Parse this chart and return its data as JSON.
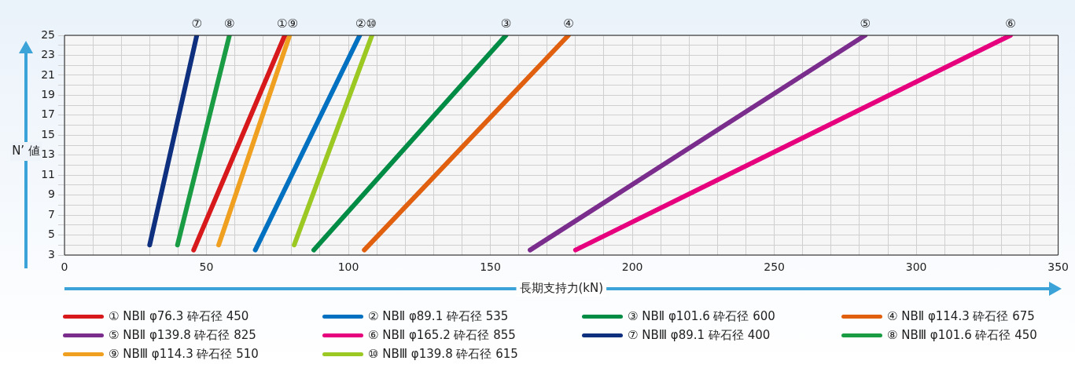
{
  "chart_data": {
    "type": "line",
    "xlabel": "長期支持力(kN)",
    "ylabel": "N’ 値",
    "xlim": [
      0,
      350
    ],
    "xticks": [
      0,
      {
        "value": 10,
        "label": null
      },
      {
        "value": 20,
        "label": null
      },
      {
        "value": 30,
        "label": null
      },
      {
        "value": 40,
        "label": null
      },
      50,
      {
        "value": 60,
        "label": null
      },
      {
        "value": 70,
        "label": null
      },
      {
        "value": 80,
        "label": null
      },
      {
        "value": 90,
        "label": null
      },
      100,
      {
        "value": 110,
        "label": null
      },
      {
        "value": 120,
        "label": null
      },
      {
        "value": 130,
        "label": null
      },
      {
        "value": 140,
        "label": null
      },
      150,
      {
        "value": 160,
        "label": null
      },
      {
        "value": 170,
        "label": null
      },
      {
        "value": 180,
        "label": null
      },
      {
        "value": 190,
        "label": null
      },
      200,
      {
        "value": 210,
        "label": null
      },
      {
        "value": 220,
        "label": null
      },
      {
        "value": 230,
        "label": null
      },
      {
        "value": 240,
        "label": null
      },
      250,
      {
        "value": 260,
        "label": null
      },
      {
        "value": 270,
        "label": null
      },
      {
        "value": 280,
        "label": null
      },
      {
        "value": 290,
        "label": null
      },
      300,
      {
        "value": 310,
        "label": null
      },
      {
        "value": 320,
        "label": null
      },
      {
        "value": 330,
        "label": null
      },
      {
        "value": 340,
        "label": null
      },
      350
    ],
    "ylim": [
      3,
      25
    ],
    "yticks": [
      3,
      {
        "value": 4,
        "label": null
      },
      5,
      {
        "value": 6,
        "label": null
      },
      7,
      {
        "value": 8,
        "label": null
      },
      9,
      {
        "value": 10,
        "label": null
      },
      11,
      {
        "value": 12,
        "label": null
      },
      13,
      {
        "value": 14,
        "label": null
      },
      15,
      {
        "value": 16,
        "label": null
      },
      17,
      {
        "value": 18,
        "label": null
      },
      19,
      {
        "value": 20,
        "label": null
      },
      21,
      {
        "value": 22,
        "label": null
      },
      23,
      {
        "value": 24,
        "label": null
      },
      25
    ],
    "grid": true,
    "legend": "bottom",
    "series": [
      {
        "name": "① NBⅡ φ76.3 砕石径 450",
        "color": "#d7191c",
        "x": [
          45.5,
          77.6
        ],
        "values": [
          3.5,
          25
        ]
      },
      {
        "name": "② NBⅡ φ89.1 砕石径 535",
        "color": "#0070c0",
        "x": [
          67.2,
          104
        ],
        "values": [
          3.5,
          25
        ]
      },
      {
        "name": "③ NBⅡ φ101.6 砕石径 600",
        "color": "#008c45",
        "x": [
          87.8,
          155.5
        ],
        "values": [
          3.5,
          25
        ]
      },
      {
        "name": "④ NBⅡ φ114.3 砕石径 675",
        "color": "#e06010",
        "x": [
          105.6,
          177.5
        ],
        "values": [
          3.5,
          25
        ]
      },
      {
        "name": "⑤ NBⅡ φ139.8 砕石径 825",
        "color": "#7a2d8c",
        "x": [
          164,
          282
        ],
        "values": [
          3.5,
          25
        ]
      },
      {
        "name": "⑥ NBⅡ φ165.2 砕石径 855",
        "color": "#e6007e",
        "x": [
          180,
          333.2
        ],
        "values": [
          3.5,
          25
        ]
      },
      {
        "name": "⑦ NBⅢ φ89.1 砕石径 400",
        "color": "#0f2f7f",
        "x": [
          30,
          46.6
        ],
        "values": [
          4,
          25
        ]
      },
      {
        "name": "⑧ NBⅢ φ101.6 砕石径 450",
        "color": "#1a9c45",
        "x": [
          39.8,
          58.1
        ],
        "values": [
          4,
          25
        ]
      },
      {
        "name": "⑨ NBⅢ φ114.3 砕石径 510",
        "color": "#f0a020",
        "x": [
          54.3,
          79.3
        ],
        "values": [
          4,
          25
        ]
      },
      {
        "name": "⑩ NBⅢ φ139.8 砕石径 615",
        "color": "#9cc823",
        "x": [
          80.9,
          108.3
        ],
        "values": [
          4,
          25
        ]
      }
    ],
    "annotations": [
      {
        "text": "①⑨",
        "x": 78.5,
        "y": 25
      },
      {
        "text": "②⑩",
        "x": 106.2,
        "y": 25
      },
      {
        "text": "③",
        "x": 155.5,
        "y": 25
      },
      {
        "text": "④",
        "x": 177.5,
        "y": 25
      },
      {
        "text": "⑤",
        "x": 282,
        "y": 25
      },
      {
        "text": "⑥",
        "x": 333.2,
        "y": 25
      },
      {
        "text": "⑦",
        "x": 46.6,
        "y": 25
      },
      {
        "text": "⑧",
        "x": 58.1,
        "y": 25
      }
    ]
  }
}
